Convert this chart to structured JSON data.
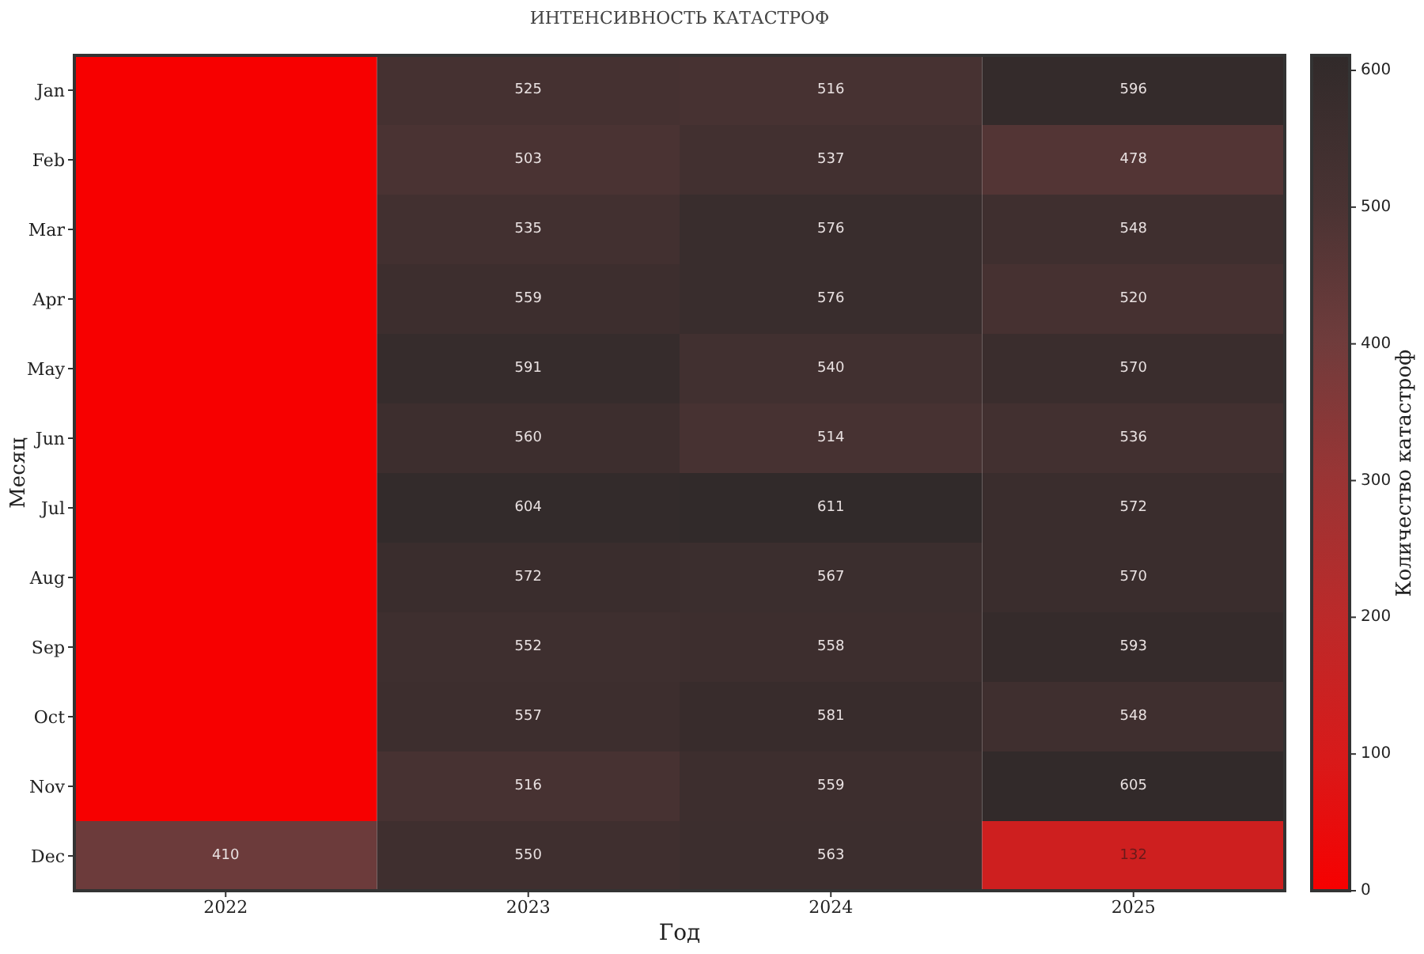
{
  "chart_data": {
    "type": "heatmap",
    "title": "ИНТЕНСИВНОСТЬ КАТАСТРОФ",
    "xlabel": "Год",
    "ylabel": "Месяц",
    "clabel": "Количество катастроф",
    "categories": [
      "2022",
      "2023",
      "2024",
      "2025"
    ],
    "y_categories": [
      "Jan",
      "Feb",
      "Mar",
      "Apr",
      "May",
      "Jun",
      "Jul",
      "Aug",
      "Sep",
      "Oct",
      "Nov",
      "Dec"
    ],
    "cells": [
      [
        0,
        525,
        516,
        596
      ],
      [
        0,
        503,
        537,
        478
      ],
      [
        0,
        535,
        576,
        548
      ],
      [
        0,
        559,
        576,
        520
      ],
      [
        0,
        591,
        540,
        570
      ],
      [
        0,
        560,
        514,
        536
      ],
      [
        0,
        604,
        611,
        572
      ],
      [
        0,
        572,
        567,
        570
      ],
      [
        0,
        552,
        558,
        593
      ],
      [
        0,
        557,
        581,
        548
      ],
      [
        0,
        516,
        559,
        605
      ],
      [
        410,
        550,
        563,
        132
      ]
    ],
    "cell_labels": [
      [
        null,
        "525",
        "516",
        "596"
      ],
      [
        null,
        "503",
        "537",
        "478"
      ],
      [
        null,
        "535",
        "576",
        "548"
      ],
      [
        null,
        "559",
        "576",
        "520"
      ],
      [
        null,
        "591",
        "540",
        "570"
      ],
      [
        null,
        "560",
        "514",
        "536"
      ],
      [
        null,
        "604",
        "611",
        "572"
      ],
      [
        null,
        "572",
        "567",
        "570"
      ],
      [
        null,
        "552",
        "558",
        "593"
      ],
      [
        null,
        "557",
        "581",
        "548"
      ],
      [
        null,
        "516",
        "559",
        "605"
      ],
      [
        "410",
        "550",
        "563",
        "132"
      ]
    ],
    "clim": [
      0,
      611
    ],
    "cticks": [
      0,
      100,
      200,
      300,
      400,
      500,
      600
    ]
  }
}
